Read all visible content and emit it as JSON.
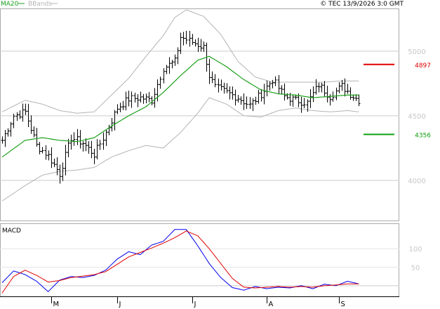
{
  "legend": {
    "ma": "MA20",
    "bb": "BBands"
  },
  "copyright": "© TEC 13/9/2026 3:0 GMT",
  "colors": {
    "ma": "#1aa01a",
    "bands": "#b4b4b4",
    "bars": "#000000",
    "macd": "#0000ee",
    "signal": "#e00000",
    "resistance": "#e00000",
    "support": "#10a010",
    "grid": "#cccccc",
    "axisText": "#c8c8c8"
  },
  "chart_data": [
    {
      "type": "ohlc",
      "panel": "price",
      "title": "",
      "legend": [
        "MA20",
        "BBands"
      ],
      "y_tick_labels": [
        "5000",
        "4500",
        "4000"
      ],
      "y_ticks": [
        5000,
        4500,
        4000
      ],
      "x_tick_labels": [
        "M",
        "J",
        "J",
        "A",
        "S"
      ],
      "ylim": [
        3700,
        5320
      ],
      "grid": true,
      "levels": [
        {
          "label": "4897",
          "value": 4897,
          "color": "red"
        },
        {
          "label": "4356",
          "value": 4356,
          "color": "green"
        }
      ],
      "close_anchors": [
        [
          0,
          4310
        ],
        [
          4,
          4500
        ],
        [
          8,
          4530
        ],
        [
          12,
          4270
        ],
        [
          16,
          4190
        ],
        [
          20,
          4050
        ],
        [
          24,
          4330
        ],
        [
          28,
          4290
        ],
        [
          32,
          4200
        ],
        [
          36,
          4370
        ],
        [
          40,
          4560
        ],
        [
          44,
          4630
        ],
        [
          48,
          4640
        ],
        [
          52,
          4620
        ],
        [
          56,
          4870
        ],
        [
          60,
          4920
        ],
        [
          62,
          5110
        ],
        [
          66,
          5070
        ],
        [
          70,
          5030
        ],
        [
          72,
          4810
        ],
        [
          74,
          4720
        ],
        [
          78,
          4680
        ],
        [
          82,
          4640
        ],
        [
          86,
          4580
        ],
        [
          90,
          4670
        ],
        [
          94,
          4780
        ],
        [
          98,
          4650
        ],
        [
          102,
          4620
        ],
        [
          106,
          4600
        ],
        [
          110,
          4740
        ],
        [
          114,
          4650
        ],
        [
          118,
          4730
        ],
        [
          122,
          4650
        ],
        [
          124,
          4620
        ]
      ],
      "ma20_anchors": [
        [
          0,
          4180
        ],
        [
          8,
          4310
        ],
        [
          14,
          4330
        ],
        [
          20,
          4310
        ],
        [
          26,
          4300
        ],
        [
          32,
          4330
        ],
        [
          38,
          4420
        ],
        [
          44,
          4500
        ],
        [
          50,
          4570
        ],
        [
          56,
          4680
        ],
        [
          62,
          4810
        ],
        [
          68,
          4930
        ],
        [
          72,
          4960
        ],
        [
          78,
          4880
        ],
        [
          84,
          4780
        ],
        [
          90,
          4700
        ],
        [
          96,
          4670
        ],
        [
          102,
          4660
        ],
        [
          108,
          4640
        ],
        [
          114,
          4650
        ],
        [
          120,
          4660
        ],
        [
          124,
          4660
        ]
      ],
      "upper_band_anchors": [
        [
          0,
          4530
        ],
        [
          8,
          4620
        ],
        [
          14,
          4590
        ],
        [
          20,
          4540
        ],
        [
          26,
          4520
        ],
        [
          32,
          4530
        ],
        [
          38,
          4660
        ],
        [
          44,
          4790
        ],
        [
          50,
          4960
        ],
        [
          56,
          5120
        ],
        [
          60,
          5260
        ],
        [
          64,
          5320
        ],
        [
          70,
          5270
        ],
        [
          76,
          5130
        ],
        [
          82,
          4920
        ],
        [
          88,
          4800
        ],
        [
          94,
          4760
        ],
        [
          100,
          4760
        ],
        [
          106,
          4760
        ],
        [
          112,
          4760
        ],
        [
          118,
          4770
        ],
        [
          124,
          4770
        ]
      ],
      "lower_band_anchors": [
        [
          0,
          3840
        ],
        [
          8,
          3960
        ],
        [
          14,
          4040
        ],
        [
          20,
          4070
        ],
        [
          26,
          4080
        ],
        [
          32,
          4100
        ],
        [
          38,
          4180
        ],
        [
          44,
          4230
        ],
        [
          50,
          4270
        ],
        [
          56,
          4250
        ],
        [
          62,
          4370
        ],
        [
          68,
          4520
        ],
        [
          72,
          4640
        ],
        [
          78,
          4590
        ],
        [
          84,
          4500
        ],
        [
          90,
          4490
        ],
        [
          96,
          4540
        ],
        [
          102,
          4560
        ],
        [
          108,
          4540
        ],
        [
          114,
          4530
        ],
        [
          120,
          4540
        ],
        [
          124,
          4530
        ]
      ]
    },
    {
      "type": "line",
      "panel": "macd",
      "title": "MACD",
      "y_tick_labels": [
        "100",
        "50"
      ],
      "y_ticks": [
        100,
        50
      ],
      "ylim": [
        -25,
        165
      ],
      "series": [
        {
          "role": "macd",
          "anchors": [
            [
              0,
              8
            ],
            [
              4,
              40
            ],
            [
              8,
              30
            ],
            [
              12,
              12
            ],
            [
              16,
              -16
            ],
            [
              20,
              15
            ],
            [
              24,
              25
            ],
            [
              28,
              22
            ],
            [
              32,
              28
            ],
            [
              36,
              42
            ],
            [
              40,
              72
            ],
            [
              44,
              92
            ],
            [
              48,
              84
            ],
            [
              52,
              110
            ],
            [
              56,
              120
            ],
            [
              60,
              152
            ],
            [
              64,
              152
            ],
            [
              68,
              108
            ],
            [
              72,
              60
            ],
            [
              76,
              22
            ],
            [
              80,
              -5
            ],
            [
              84,
              -12
            ],
            [
              88,
              -2
            ],
            [
              92,
              -8
            ],
            [
              96,
              -4
            ],
            [
              100,
              -6
            ],
            [
              104,
              0
            ],
            [
              108,
              -8
            ],
            [
              112,
              4
            ],
            [
              116,
              0
            ],
            [
              120,
              12
            ],
            [
              124,
              5
            ]
          ]
        },
        {
          "role": "signal",
          "anchors": [
            [
              0,
              -20
            ],
            [
              4,
              25
            ],
            [
              8,
              42
            ],
            [
              12,
              28
            ],
            [
              16,
              10
            ],
            [
              20,
              14
            ],
            [
              24,
              22
            ],
            [
              28,
              26
            ],
            [
              32,
              30
            ],
            [
              36,
              38
            ],
            [
              40,
              58
            ],
            [
              44,
              78
            ],
            [
              48,
              90
            ],
            [
              52,
              102
            ],
            [
              56,
              115
            ],
            [
              60,
              130
            ],
            [
              64,
              148
            ],
            [
              68,
              135
            ],
            [
              72,
              100
            ],
            [
              76,
              60
            ],
            [
              80,
              20
            ],
            [
              84,
              -4
            ],
            [
              88,
              -6
            ],
            [
              92,
              -4
            ],
            [
              96,
              -2
            ],
            [
              100,
              -4
            ],
            [
              104,
              -2
            ],
            [
              108,
              -4
            ],
            [
              112,
              0
            ],
            [
              116,
              2
            ],
            [
              120,
              5
            ],
            [
              124,
              5
            ]
          ]
        }
      ]
    }
  ]
}
